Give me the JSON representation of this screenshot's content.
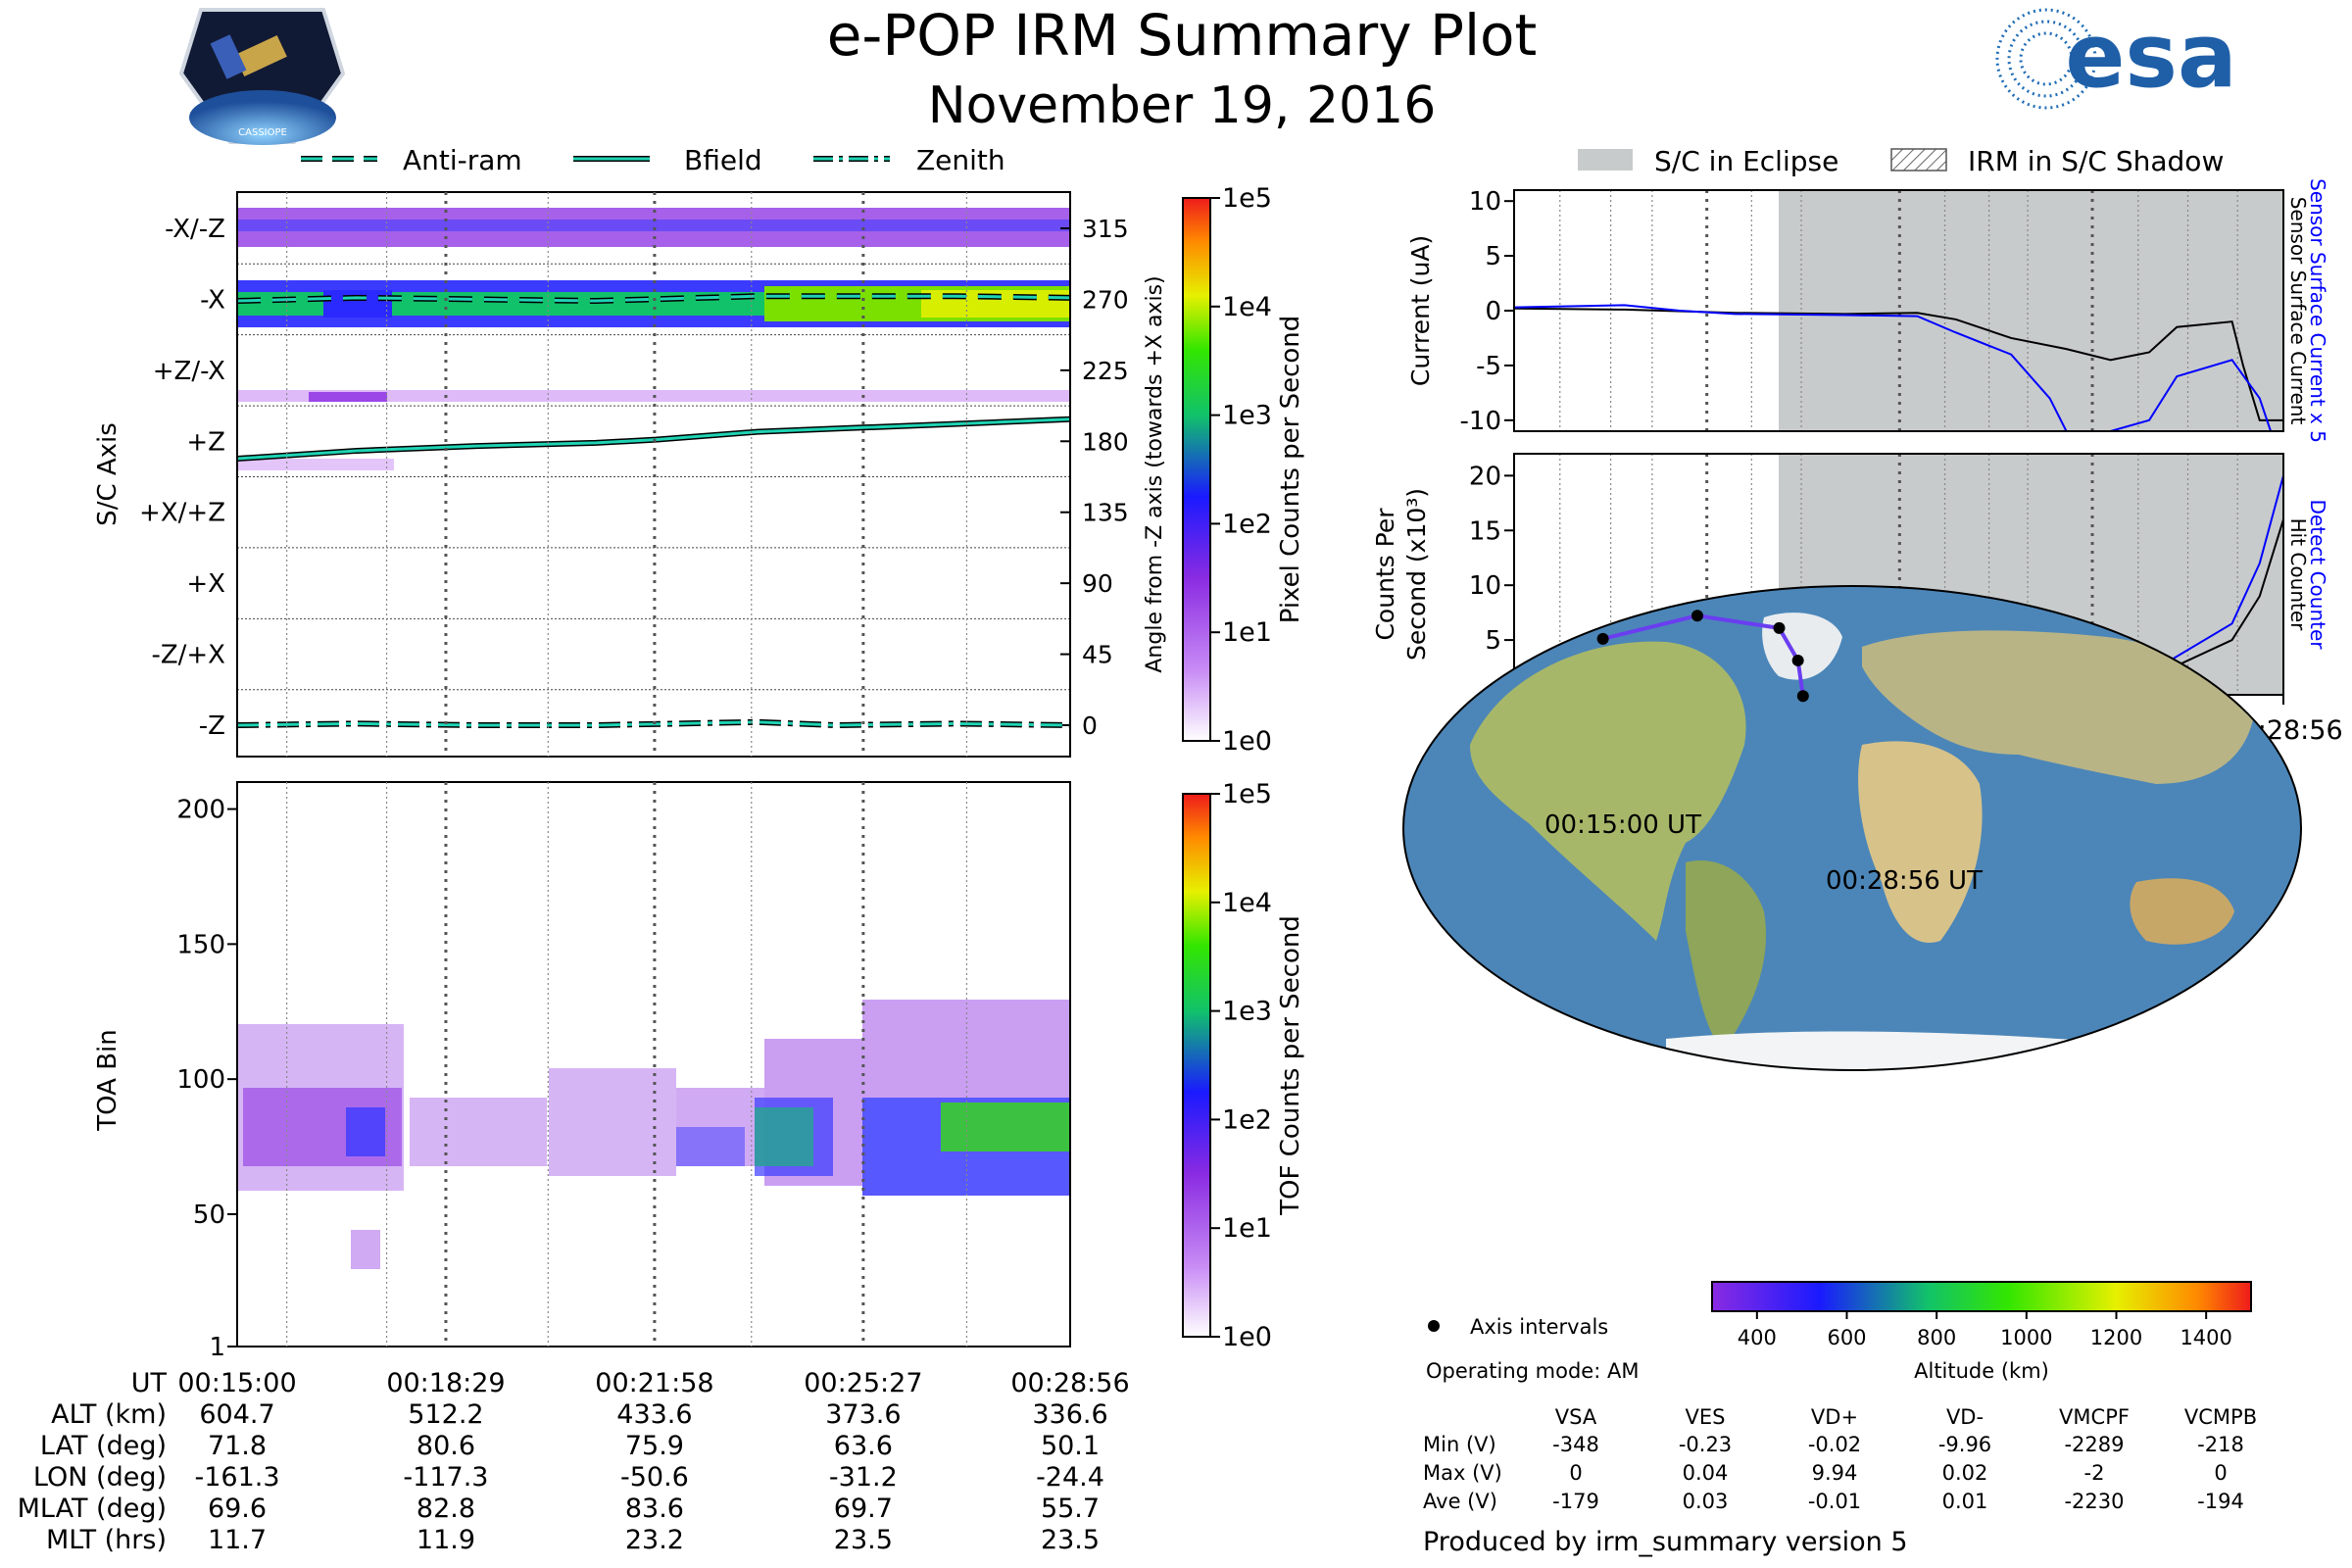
{
  "header": {
    "title": "e-POP IRM Summary Plot",
    "date": "November 19, 2016",
    "left_logo_text": "CASSIOPE",
    "right_logo_text": "esa"
  },
  "legend_left": {
    "items": [
      "Anti-ram",
      "Bfield",
      "Zenith"
    ]
  },
  "legend_right": {
    "items": [
      "S/C in Eclipse",
      "IRM in S/C Shadow"
    ]
  },
  "colors": {
    "line_accent": "#1ed3b4",
    "eclipse_fill": "#c8cbcb",
    "hit_counter": "#000000",
    "detect_counter": "#0000ff",
    "track": "#6a3df0"
  },
  "chart_data": [
    {
      "type": "heatmap",
      "name": "axis-panel",
      "ylabel": "S/C Axis",
      "right_ylabel": "Angle from -Z axis (towards +X axis)",
      "row_labels": [
        "-X/-Z",
        "-X",
        "+Z/-X",
        "+Z",
        "+X/+Z",
        "+X",
        "-Z/+X",
        "-Z"
      ],
      "right_ticks": [
        "315",
        "270",
        "225",
        "180",
        "135",
        "90",
        "45",
        "0"
      ],
      "xlim_min": [
        0,
        13.93
      ],
      "colorbar": {
        "label": "Pixel Counts per Second",
        "ticks": [
          "1e5",
          "1e4",
          "1e3",
          "1e2",
          "1e1",
          "1e0"
        ]
      },
      "series": [
        {
          "name": "Bfield",
          "x": [
            0,
            2,
            4,
            6,
            7,
            8.7,
            10,
            12,
            13.93
          ],
          "values": [
            169,
            174,
            177,
            179,
            181,
            186,
            188,
            191,
            194
          ]
        },
        {
          "name": "Zenith",
          "x": [
            0,
            2,
            4,
            6,
            8.7,
            10,
            12,
            13.93
          ],
          "values": [
            0,
            1,
            0,
            0,
            2,
            0,
            1,
            0
          ]
        },
        {
          "name": "Anti-ram",
          "x": [
            0,
            2,
            4,
            6,
            8.7,
            10,
            12,
            13.93
          ],
          "values": [
            269,
            271,
            270,
            269,
            272,
            272,
            272,
            271
          ]
        }
      ]
    },
    {
      "type": "heatmap",
      "name": "toa-panel",
      "ylabel": "TOA Bin",
      "yticks": [
        "200",
        "150",
        "100",
        "50",
        "1"
      ],
      "ylim": [
        1,
        210
      ],
      "colorbar": {
        "label": "TOF Counts per Second",
        "ticks": [
          "1e5",
          "1e4",
          "1e3",
          "1e2",
          "1e1",
          "1e0"
        ]
      }
    },
    {
      "type": "line",
      "name": "current-panel",
      "ylabel": "Current (uA)",
      "right_labels": [
        "Sensor Surface Current x 5",
        "Sensor Surface Current"
      ],
      "yticks": [
        "10",
        "5",
        "0",
        "-5",
        "-10"
      ],
      "ylim": [
        -11,
        11
      ],
      "eclipse_start_min": 7.3,
      "series": [
        {
          "name": "Sensor Surface Current",
          "x": [
            0,
            2,
            4,
            6,
            7.3,
            8,
            9,
            10,
            10.8,
            11.5,
            12,
            13,
            13.2,
            13.5,
            13.93
          ],
          "values": [
            0.2,
            0.1,
            -0.2,
            -0.3,
            -0.2,
            -0.8,
            -2.5,
            -3.5,
            -4.5,
            -3.8,
            -1.5,
            -1,
            -5,
            -10,
            -10
          ]
        },
        {
          "name": "Sensor Surface Current x 5",
          "x": [
            0,
            2,
            3,
            4,
            6,
            7.3,
            8,
            9,
            9.7,
            10,
            10.8,
            11.5,
            12,
            13,
            13.5,
            13.7
          ],
          "values": [
            0.3,
            0.5,
            0,
            -0.3,
            -0.4,
            -0.5,
            -2,
            -4,
            -8,
            -11,
            -11,
            -10,
            -6,
            -4.5,
            -8,
            -11
          ]
        }
      ]
    },
    {
      "type": "line",
      "name": "counts-panel",
      "ylabel": "Counts Per Second (x10³)",
      "right_labels": [
        "Detect Counter",
        "Hit Counter"
      ],
      "yticks": [
        "20",
        "15",
        "10",
        "5",
        "0"
      ],
      "ylim": [
        0,
        22
      ],
      "xticks": [
        "00:15:00",
        "00:18:29",
        "00:21:58",
        "00:25:27",
        "00:28:56"
      ],
      "series": [
        {
          "name": "Hit Counter",
          "x": [
            0,
            1,
            2,
            2.3,
            3,
            5,
            7,
            8,
            9,
            9.5,
            10,
            10.6,
            11,
            11.5,
            13,
            13.5,
            13.93
          ],
          "values": [
            0.5,
            0.6,
            1.2,
            2.5,
            0.8,
            0.4,
            0.3,
            0.5,
            1,
            2,
            4.5,
            1.5,
            2.5,
            1.5,
            5,
            9,
            16
          ]
        },
        {
          "name": "Detect Counter",
          "x": [
            0,
            1,
            2,
            2.3,
            3,
            5,
            7,
            8,
            9,
            9.5,
            10,
            10.6,
            11,
            11.5,
            13,
            13.5,
            13.93
          ],
          "values": [
            0.6,
            0.8,
            1.5,
            3,
            1,
            0.5,
            0.4,
            0.6,
            1.5,
            3,
            6,
            2,
            3,
            2,
            6.5,
            12,
            20
          ]
        }
      ]
    },
    {
      "type": "scatter",
      "name": "ground-track",
      "start_label": "00:15:00 UT",
      "end_label": "00:28:56 UT",
      "points_lon": [
        -161.3,
        -117.3,
        -50.6,
        -31.2,
        -24.4
      ],
      "points_lat": [
        71.8,
        80.6,
        75.9,
        63.6,
        50.1
      ],
      "colorbar": {
        "label": "Altitude (km)",
        "ticks": [
          "400",
          "600",
          "800",
          "1000",
          "1200",
          "1400"
        ]
      },
      "legend": "Axis intervals"
    }
  ],
  "ephemeris": {
    "labels": [
      "UT",
      "ALT (km)",
      "LAT (deg)",
      "LON (deg)",
      "MLAT (deg)",
      "MLT (hrs)"
    ],
    "columns": [
      [
        "00:15:00",
        "604.7",
        "71.8",
        "-161.3",
        "69.6",
        "11.7"
      ],
      [
        "00:18:29",
        "512.2",
        "80.6",
        "-117.3",
        "82.8",
        "11.9"
      ],
      [
        "00:21:58",
        "433.6",
        "75.9",
        "-50.6",
        "83.6",
        "23.2"
      ],
      [
        "00:25:27",
        "373.6",
        "63.6",
        "-31.2",
        "69.7",
        "23.5"
      ],
      [
        "00:28:56",
        "336.6",
        "50.1",
        "-24.4",
        "55.7",
        "23.5"
      ]
    ]
  },
  "voltages": {
    "mode": "Operating mode: AM",
    "headers": [
      "VSA",
      "VES",
      "VD+",
      "VD-",
      "VMCPF",
      "VCMPB"
    ],
    "rows": [
      {
        "label": "Min (V)",
        "values": [
          "-348",
          "-0.23",
          "-0.02",
          "-9.96",
          "-2289",
          "-218"
        ]
      },
      {
        "label": "Max (V)",
        "values": [
          "0",
          "0.04",
          "9.94",
          "0.02",
          "-2",
          "0"
        ]
      },
      {
        "label": "Ave (V)",
        "values": [
          "-179",
          "0.03",
          "-0.01",
          "0.01",
          "-2230",
          "-194"
        ]
      }
    ]
  },
  "footer": "Produced by irm_summary version 5"
}
